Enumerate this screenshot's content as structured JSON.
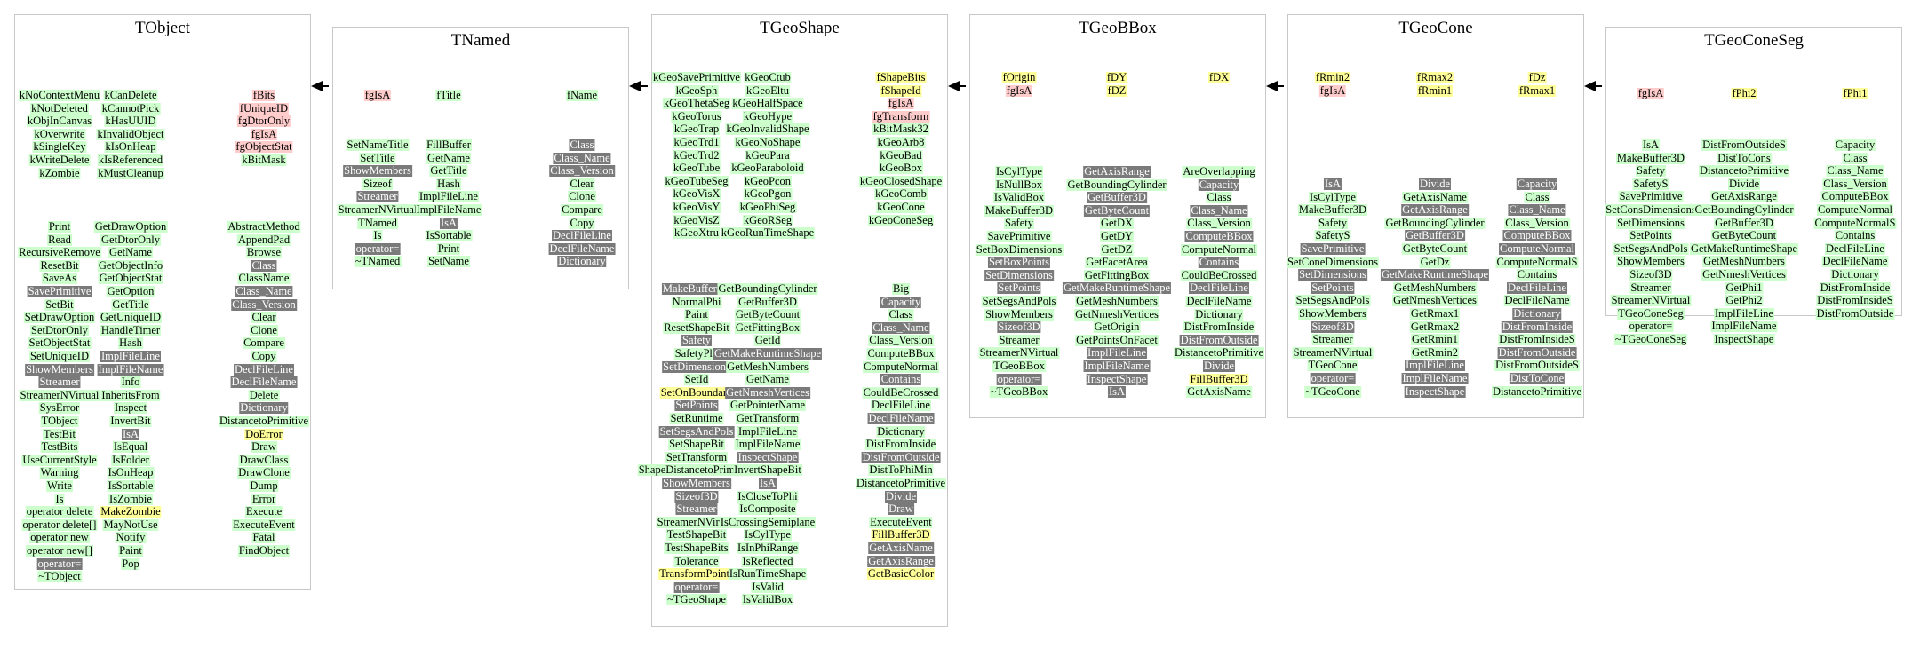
{
  "legend_colors": {
    "method": "#ccffcc",
    "overridden_method": "#7a7a7a",
    "data_member": "#ffcccc",
    "used_member": "#ffff99"
  },
  "classes": [
    {
      "name": "TObject",
      "columns": [
        {
          "data": [
            "kNoContextMenu",
            "kNotDeleted",
            "kObjInCanvas",
            "kOverwrite",
            "kSingleKey",
            "kWriteDelete",
            "kZombie"
          ],
          "methods": [
            "Print",
            "Read",
            "RecursiveRemove",
            "ResetBit",
            "SaveAs",
            "SavePrimitive",
            "SetBit",
            "SetDrawOption",
            "SetDtorOnly",
            "SetObjectStat",
            "SetUniqueID",
            "ShowMembers",
            "Streamer",
            "StreamerNVirtual",
            "SysError",
            "TObject",
            "TestBit",
            "TestBits",
            "UseCurrentStyle",
            "Warning",
            "Write",
            "Is",
            "operator delete",
            "operator delete[]",
            "operator new",
            "operator new[]",
            "operator=",
            "~TObject"
          ]
        },
        {
          "data": [
            "kCanDelete",
            "kCannotPick",
            "kHasUUID",
            "kInvalidObject",
            "kIsOnHeap",
            "kIsReferenced",
            "kMustCleanup"
          ],
          "methods": [
            "GetDrawOption",
            "GetDtorOnly",
            "GetName",
            "GetObjectInfo",
            "GetObjectStat",
            "GetOption",
            "GetTitle",
            "GetUniqueID",
            "HandleTimer",
            "Hash",
            "ImplFileLine",
            "ImplFileName",
            "Info",
            "InheritsFrom",
            "Inspect",
            "InvertBit",
            "IsA",
            "IsEqual",
            "IsFolder",
            "IsOnHeap",
            "IsSortable",
            "IsZombie",
            "MakeZombie",
            "MayNotUse",
            "Notify",
            "Paint",
            "Pop"
          ]
        },
        {
          "data": [
            "fBits",
            "fUniqueID",
            "fgDtorOnly",
            "fgIsA",
            "fgObjectStat",
            "kBitMask"
          ],
          "methods": [
            "AbstractMethod",
            "AppendPad",
            "Browse",
            "Class",
            "ClassName",
            "Class_Name",
            "Class_Version",
            "Clear",
            "Clone",
            "Compare",
            "Copy",
            "DeclFileLine",
            "DeclFileName",
            "Delete",
            "Dictionary",
            "DistancetoPrimitive",
            "DoError",
            "Draw",
            "DrawClass",
            "DrawClone",
            "Dump",
            "Error",
            "Execute",
            "ExecuteEvent",
            "Fatal",
            "FindObject"
          ]
        }
      ]
    },
    {
      "name": "TNamed",
      "columns": [
        {
          "data": [
            "fgIsA"
          ],
          "methods": [
            "SetNameTitle",
            "SetTitle",
            "ShowMembers",
            "Sizeof",
            "Streamer",
            "StreamerNVirtual",
            "TNamed",
            "Is",
            "operator=",
            "~TNamed"
          ]
        },
        {
          "data": [
            "fTitle"
          ],
          "methods": [
            "FillBuffer",
            "GetName",
            "GetTitle",
            "Hash",
            "ImplFileLine",
            "ImplFileName",
            "IsA",
            "IsSortable",
            "Print",
            "SetName"
          ]
        },
        {
          "data": [
            "fName"
          ],
          "methods": [
            "Class",
            "Class_Name",
            "Class_Version",
            "Clear",
            "Clone",
            "Compare",
            "Copy",
            "DeclFileLine",
            "DeclFileName",
            "Dictionary"
          ]
        }
      ]
    },
    {
      "name": "TGeoShape",
      "columns": [
        {
          "data": [
            "kGeoSavePrimitive",
            "kGeoSph",
            "kGeoThetaSeg",
            "kGeoTorus",
            "kGeoTrap",
            "kGeoTrd1",
            "kGeoTrd2",
            "kGeoTube",
            "kGeoTubeSeg",
            "kGeoVisX",
            "kGeoVisY",
            "kGeoVisZ",
            "kGeoXtru"
          ],
          "methods": [
            "MakeBuffer3D",
            "NormalPhi",
            "Paint",
            "ResetShapeBit",
            "Safety",
            "SafetyPhi",
            "SetDimensions",
            "SetId",
            "SetOnBoundary",
            "SetPoints",
            "SetRuntime",
            "SetSegsAndPols",
            "SetShapeBit",
            "SetTransform",
            "ShapeDistancetoPrimitive",
            "ShowMembers",
            "Sizeof3D",
            "Streamer",
            "StreamerNVirtual",
            "TestShapeBit",
            "TestShapeBits",
            "Tolerance",
            "TransformPoints",
            "operator=",
            "~TGeoShape"
          ]
        },
        {
          "data": [
            "kGeoCtub",
            "kGeoEltu",
            "kGeoHalfSpace",
            "kGeoHype",
            "kGeoInvalidShape",
            "kGeoNoShape",
            "kGeoPara",
            "kGeoParaboloid",
            "kGeoPcon",
            "kGeoPgon",
            "kGeoPhiSeg",
            "kGeoRSeg",
            "kGeoRunTimeShape"
          ],
          "methods": [
            "GetBoundingCylinder",
            "GetBuffer3D",
            "GetByteCount",
            "GetFittingBox",
            "GetId",
            "GetMakeRuntimeShape",
            "GetMeshNumbers",
            "GetName",
            "GetNmeshVertices",
            "GetPointerName",
            "GetTransform",
            "ImplFileLine",
            "ImplFileName",
            "InspectShape",
            "InvertShapeBit",
            "IsA",
            "IsCloseToPhi",
            "IsComposite",
            "IsCrossingSemiplane",
            "IsCylType",
            "IsInPhiRange",
            "IsReflected",
            "IsRunTimeShape",
            "IsValid",
            "IsValidBox"
          ]
        },
        {
          "data": [
            "fShapeBits",
            "fShapeId",
            "fgIsA",
            "fgTransform",
            "kBitMask32",
            "kGeoArb8",
            "kGeoBad",
            "kGeoBox",
            "kGeoClosedShape",
            "kGeoComb",
            "kGeoCone",
            "kGeoConeSeg"
          ],
          "methods": [
            "Big",
            "Capacity",
            "Class",
            "Class_Name",
            "Class_Version",
            "ComputeBBox",
            "ComputeNormal",
            "Contains",
            "CouldBeCrossed",
            "DeclFileLine",
            "DeclFileName",
            "Dictionary",
            "DistFromInside",
            "DistFromOutside",
            "DistToPhiMin",
            "DistancetoPrimitive",
            "Divide",
            "Draw",
            "ExecuteEvent",
            "FillBuffer3D",
            "GetAxisName",
            "GetAxisRange",
            "GetBasicColor"
          ]
        }
      ]
    },
    {
      "name": "TGeoBBox",
      "columns": [
        {
          "data": [
            "fOrigin",
            "fgIsA"
          ],
          "methods": [
            "IsCylType",
            "IsNullBox",
            "IsValidBox",
            "MakeBuffer3D",
            "Safety",
            "SavePrimitive",
            "SetBoxDimensions",
            "SetBoxPoints",
            "SetDimensions",
            "SetPoints",
            "SetSegsAndPols",
            "ShowMembers",
            "Sizeof3D",
            "Streamer",
            "StreamerNVirtual",
            "TGeoBBox",
            "operator=",
            "~TGeoBBox"
          ]
        },
        {
          "data": [
            "fDY",
            "fDZ"
          ],
          "methods": [
            "GetAxisRange",
            "GetBoundingCylinder",
            "GetBuffer3D",
            "GetByteCount",
            "GetDX",
            "GetDY",
            "GetDZ",
            "GetFacetArea",
            "GetFittingBox",
            "GetMakeRuntimeShape",
            "GetMeshNumbers",
            "GetNmeshVertices",
            "GetOrigin",
            "GetPointsOnFacet",
            "ImplFileLine",
            "ImplFileName",
            "InspectShape",
            "IsA"
          ]
        },
        {
          "data": [
            "fDX"
          ],
          "methods": [
            "AreOverlapping",
            "Capacity",
            "Class",
            "Class_Name",
            "Class_Version",
            "ComputeBBox",
            "ComputeNormal",
            "Contains",
            "CouldBeCrossed",
            "DeclFileLine",
            "DeclFileName",
            "Dictionary",
            "DistFromInside",
            "DistFromOutside",
            "DistancetoPrimitive",
            "Divide",
            "FillBuffer3D",
            "GetAxisName"
          ]
        }
      ]
    },
    {
      "name": "TGeoCone",
      "columns": [
        {
          "data": [
            "fRmin2",
            "fgIsA"
          ],
          "methods": [
            "IsA",
            "IsCylType",
            "MakeBuffer3D",
            "Safety",
            "SafetyS",
            "SavePrimitive",
            "SetConeDimensions",
            "SetDimensions",
            "SetPoints",
            "SetSegsAndPols",
            "ShowMembers",
            "Sizeof3D",
            "Streamer",
            "StreamerNVirtual",
            "TGeoCone",
            "operator=",
            "~TGeoCone"
          ]
        },
        {
          "data": [
            "fRmax2",
            "fRmin1"
          ],
          "methods": [
            "Divide",
            "GetAxisName",
            "GetAxisRange",
            "GetBoundingCylinder",
            "GetBuffer3D",
            "GetByteCount",
            "GetDz",
            "GetMakeRuntimeShape",
            "GetMeshNumbers",
            "GetNmeshVertices",
            "GetRmax1",
            "GetRmax2",
            "GetRmin1",
            "GetRmin2",
            "ImplFileLine",
            "ImplFileName",
            "InspectShape"
          ]
        },
        {
          "data": [
            "fDz",
            "fRmax1"
          ],
          "methods": [
            "Capacity",
            "Class",
            "Class_Name",
            "Class_Version",
            "ComputeBBox",
            "ComputeNormal",
            "ComputeNormalS",
            "Contains",
            "DeclFileLine",
            "DeclFileName",
            "Dictionary",
            "DistFromInside",
            "DistFromInsideS",
            "DistFromOutside",
            "DistFromOutsideS",
            "DistToCone",
            "DistancetoPrimitive"
          ]
        }
      ]
    },
    {
      "name": "TGeoConeSeg",
      "columns": [
        {
          "data": [
            "fgIsA"
          ],
          "methods": [
            "IsA",
            "MakeBuffer3D",
            "Safety",
            "SafetyS",
            "SavePrimitive",
            "SetConsDimensions",
            "SetDimensions",
            "SetPoints",
            "SetSegsAndPols",
            "ShowMembers",
            "Sizeof3D",
            "Streamer",
            "StreamerNVirtual",
            "TGeoConeSeg",
            "operator=",
            "~TGeoConeSeg"
          ]
        },
        {
          "data": [
            "fPhi2"
          ],
          "methods": [
            "DistFromOutsideS",
            "DistToCons",
            "DistancetoPrimitive",
            "Divide",
            "GetAxisRange",
            "GetBoundingCylinder",
            "GetBuffer3D",
            "GetByteCount",
            "GetMakeRuntimeShape",
            "GetMeshNumbers",
            "GetNmeshVertices",
            "GetPhi1",
            "GetPhi2",
            "ImplFileLine",
            "ImplFileName",
            "InspectShape"
          ]
        },
        {
          "data": [
            "fPhi1"
          ],
          "methods": [
            "Capacity",
            "Class",
            "Class_Name",
            "Class_Version",
            "ComputeBBox",
            "ComputeNormal",
            "ComputeNormalS",
            "Contains",
            "DeclFileLine",
            "DeclFileName",
            "Dictionary",
            "DistFromInside",
            "DistFromInsideS",
            "DistFromOutside"
          ]
        }
      ]
    }
  ]
}
